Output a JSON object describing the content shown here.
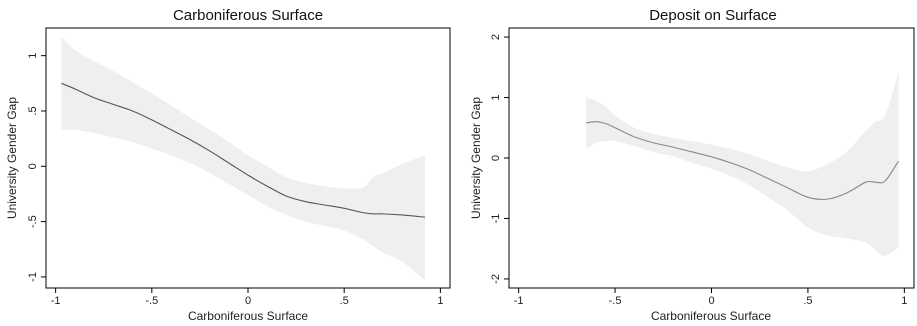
{
  "chart_data": [
    {
      "type": "line",
      "title": "Carboniferous Surface",
      "xlabel": "Carboniferous Surface",
      "ylabel": "University Gender Gap",
      "xlim": [
        -1.05,
        1.05
      ],
      "ylim": [
        -1.1,
        1.25
      ],
      "xticks": [
        -1,
        -0.5,
        0,
        0.5,
        1
      ],
      "xtick_labels": [
        "-1",
        "-.5",
        "0",
        ".5",
        "1"
      ],
      "yticks": [
        -1,
        -0.5,
        0,
        0.5,
        1
      ],
      "ytick_labels": [
        "-1",
        "-.5",
        "0",
        ".5",
        "1"
      ],
      "grid": false,
      "line_color": "#555555",
      "band_color": "#efefef",
      "series": [
        {
          "x": [
            -0.97,
            -0.9,
            -0.8,
            -0.7,
            -0.6,
            -0.5,
            -0.4,
            -0.3,
            -0.2,
            -0.1,
            0.0,
            0.1,
            0.2,
            0.3,
            0.4,
            0.5,
            0.6,
            0.65,
            0.7,
            0.8,
            0.92
          ],
          "y": [
            0.75,
            0.7,
            0.62,
            0.56,
            0.5,
            0.42,
            0.33,
            0.24,
            0.14,
            0.03,
            -0.08,
            -0.18,
            -0.27,
            -0.32,
            -0.35,
            -0.38,
            -0.42,
            -0.43,
            -0.43,
            -0.44,
            -0.46
          ],
          "ci_upper": [
            1.17,
            1.05,
            0.95,
            0.86,
            0.76,
            0.66,
            0.55,
            0.44,
            0.33,
            0.22,
            0.1,
            0.0,
            -0.1,
            -0.15,
            -0.18,
            -0.2,
            -0.19,
            -0.1,
            -0.06,
            0.02,
            0.1
          ],
          "ci_lower": [
            0.33,
            0.33,
            0.3,
            0.26,
            0.22,
            0.16,
            0.1,
            0.03,
            -0.06,
            -0.16,
            -0.26,
            -0.36,
            -0.44,
            -0.5,
            -0.54,
            -0.58,
            -0.66,
            -0.72,
            -0.78,
            -0.86,
            -1.03
          ]
        }
      ]
    },
    {
      "type": "line",
      "title": "Deposit on Surface",
      "xlabel": "Carboniferous Surface",
      "ylabel": "University Gender Gap",
      "xlim": [
        -1.05,
        1.05
      ],
      "ylim": [
        -2.15,
        2.15
      ],
      "xticks": [
        -1,
        -0.5,
        0,
        0.5,
        1
      ],
      "xtick_labels": [
        "-1",
        "-.5",
        "0",
        ".5",
        "1"
      ],
      "yticks": [
        -2,
        -1,
        0,
        1,
        2
      ],
      "ytick_labels": [
        "-2",
        "-1",
        "0",
        "1",
        "2"
      ],
      "grid": false,
      "line_color": "#888888",
      "band_color": "#efefef",
      "series": [
        {
          "x": [
            -0.65,
            -0.6,
            -0.55,
            -0.5,
            -0.4,
            -0.3,
            -0.2,
            -0.1,
            0.0,
            0.1,
            0.2,
            0.3,
            0.4,
            0.5,
            0.6,
            0.7,
            0.8,
            0.85,
            0.9,
            0.97
          ],
          "y": [
            0.58,
            0.6,
            0.57,
            0.5,
            0.35,
            0.25,
            0.18,
            0.1,
            0.02,
            -0.08,
            -0.2,
            -0.35,
            -0.5,
            -0.65,
            -0.68,
            -0.58,
            -0.4,
            -0.4,
            -0.38,
            -0.05
          ],
          "ci_upper": [
            1.0,
            0.95,
            0.85,
            0.7,
            0.5,
            0.4,
            0.33,
            0.28,
            0.22,
            0.15,
            0.06,
            -0.06,
            -0.16,
            -0.22,
            -0.1,
            0.1,
            0.45,
            0.6,
            0.7,
            1.42
          ],
          "ci_lower": [
            0.15,
            0.25,
            0.28,
            0.28,
            0.2,
            0.1,
            0.03,
            -0.08,
            -0.18,
            -0.3,
            -0.46,
            -0.66,
            -0.88,
            -1.15,
            -1.28,
            -1.33,
            -1.4,
            -1.52,
            -1.62,
            -1.48
          ]
        }
      ]
    }
  ]
}
